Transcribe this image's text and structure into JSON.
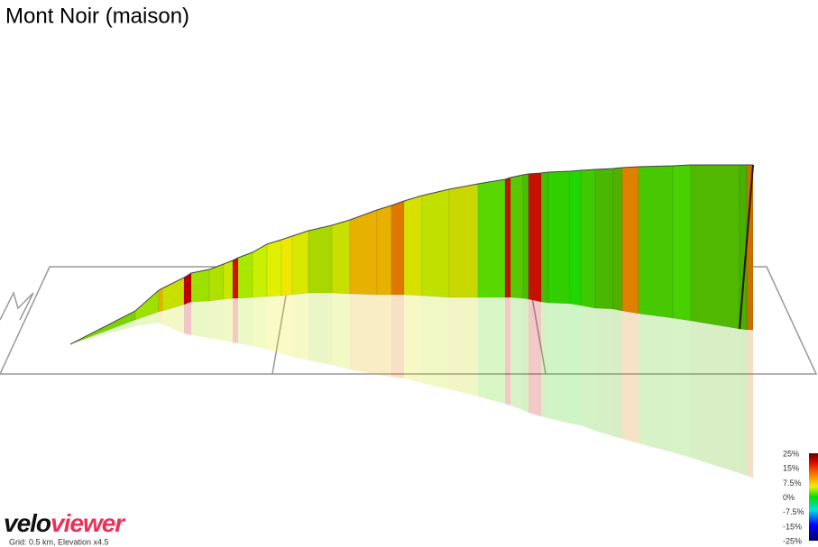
{
  "title": "Mont Noir (maison)",
  "legend": {
    "labels": [
      "25%",
      "15%",
      "7.5%",
      "0%",
      "-7.5%",
      "-15%",
      "-25%"
    ]
  },
  "logo": {
    "part1": "velo",
    "part2": "viewer"
  },
  "footnote": "Grid: 0.5 km, Elevation x4.5"
}
